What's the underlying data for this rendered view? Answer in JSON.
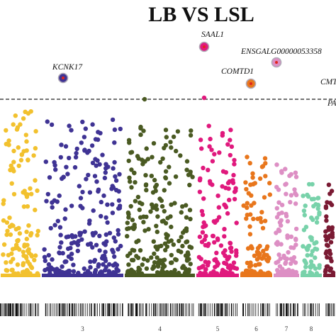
{
  "chart_data": {
    "type": "scatter",
    "subtype": "manhattan",
    "title": "LB VS LSL",
    "threshold_y": 6.2,
    "ylim": [
      0,
      8.6
    ],
    "grid": false,
    "chromosomes": [
      {
        "label": "",
        "color": "#f2c12e",
        "start": 0,
        "end": 58,
        "count": 120,
        "max": 5.8,
        "min": 0.05
      },
      {
        "label": "3",
        "color": "#3f3394",
        "start": 58,
        "end": 175,
        "count": 230,
        "max": 5.5,
        "min": 0.05
      },
      {
        "label": "4",
        "color": "#4a5a22",
        "start": 175,
        "end": 276,
        "count": 230,
        "max": 5.5,
        "min": 0.05
      },
      {
        "label": "5",
        "color": "#e0197d",
        "start": 276,
        "end": 338,
        "count": 140,
        "max": 5.3,
        "min": 0.05
      },
      {
        "label": "6",
        "color": "#e8761c",
        "start": 338,
        "end": 385,
        "count": 90,
        "max": 4.2,
        "min": 0.05
      },
      {
        "label": "7",
        "color": "#dd8fc4",
        "start": 385,
        "end": 423,
        "count": 85,
        "max": 4.0,
        "min": 0.05
      },
      {
        "label": "8",
        "color": "#78d2aa",
        "start": 423,
        "end": 455,
        "count": 60,
        "max": 3.6,
        "min": 0.05
      },
      {
        "label": "",
        "color": "#7a1a33",
        "start": 455,
        "end": 474,
        "count": 40,
        "max": 3.2,
        "min": 0.05
      }
    ],
    "highlighted_genes": [
      {
        "label": "KCNK17",
        "x": 89,
        "y": 6.95,
        "color": "#3f3394"
      },
      {
        "label": "SAAL1",
        "x": 288,
        "y": 8.05,
        "color": "#e0197d"
      },
      {
        "label": "ENSGALG00000053358",
        "x": 390,
        "y": 7.5,
        "color": "#dd8fc4"
      },
      {
        "label": "COMTD1",
        "x": 354,
        "y": 6.75,
        "color": "#e8761c"
      },
      {
        "label": "CMT",
        "x": 474,
        "y": 7.0,
        "color": "#7a1a33"
      },
      {
        "label": "PA",
        "x": 474,
        "y": 6.2,
        "color": "#7a1a33"
      }
    ],
    "threshold_points": [
      {
        "x": 204,
        "y": 6.2,
        "color": "#4a5a22"
      },
      {
        "x": 288,
        "y": 6.25,
        "color": "#e0197d"
      }
    ]
  }
}
